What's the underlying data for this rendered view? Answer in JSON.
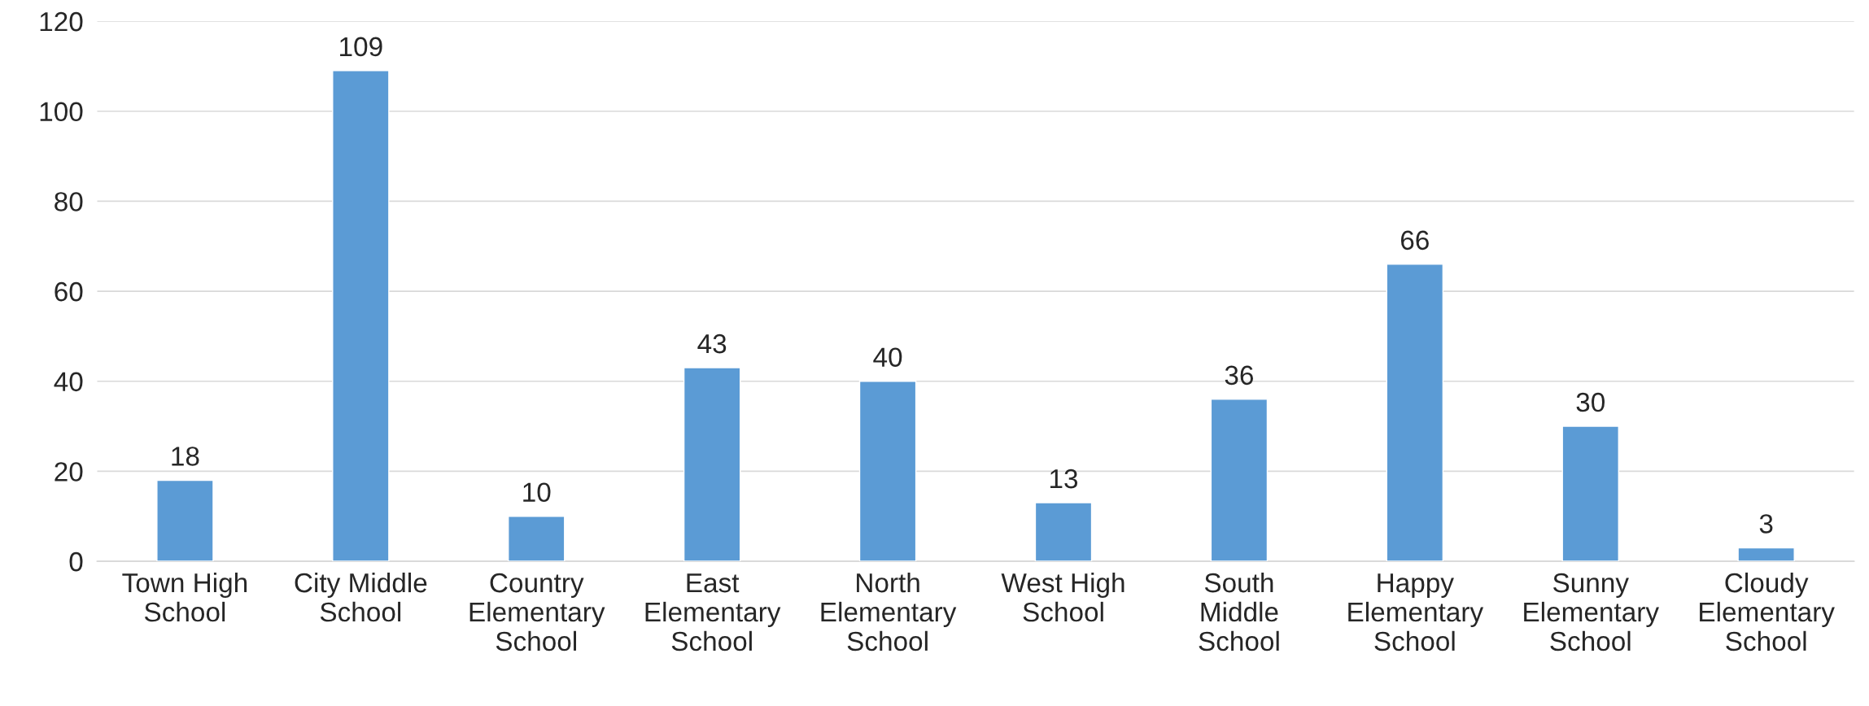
{
  "chart_data": {
    "type": "bar",
    "categories": [
      "Town High School",
      "City Middle School",
      "Country Elementary School",
      "East Elementary School",
      "North Elementary School",
      "West High School",
      "South Middle School",
      "Happy Elementary School",
      "Sunny Elementary School",
      "Cloudy Elementary School"
    ],
    "values": [
      18,
      109,
      10,
      43,
      40,
      13,
      36,
      66,
      30,
      3
    ],
    "color": "#5b9bd5",
    "ylim": [
      0,
      120
    ],
    "yticks": [
      0,
      20,
      40,
      60,
      80,
      100,
      120
    ],
    "grid": "y",
    "data_labels": true
  }
}
